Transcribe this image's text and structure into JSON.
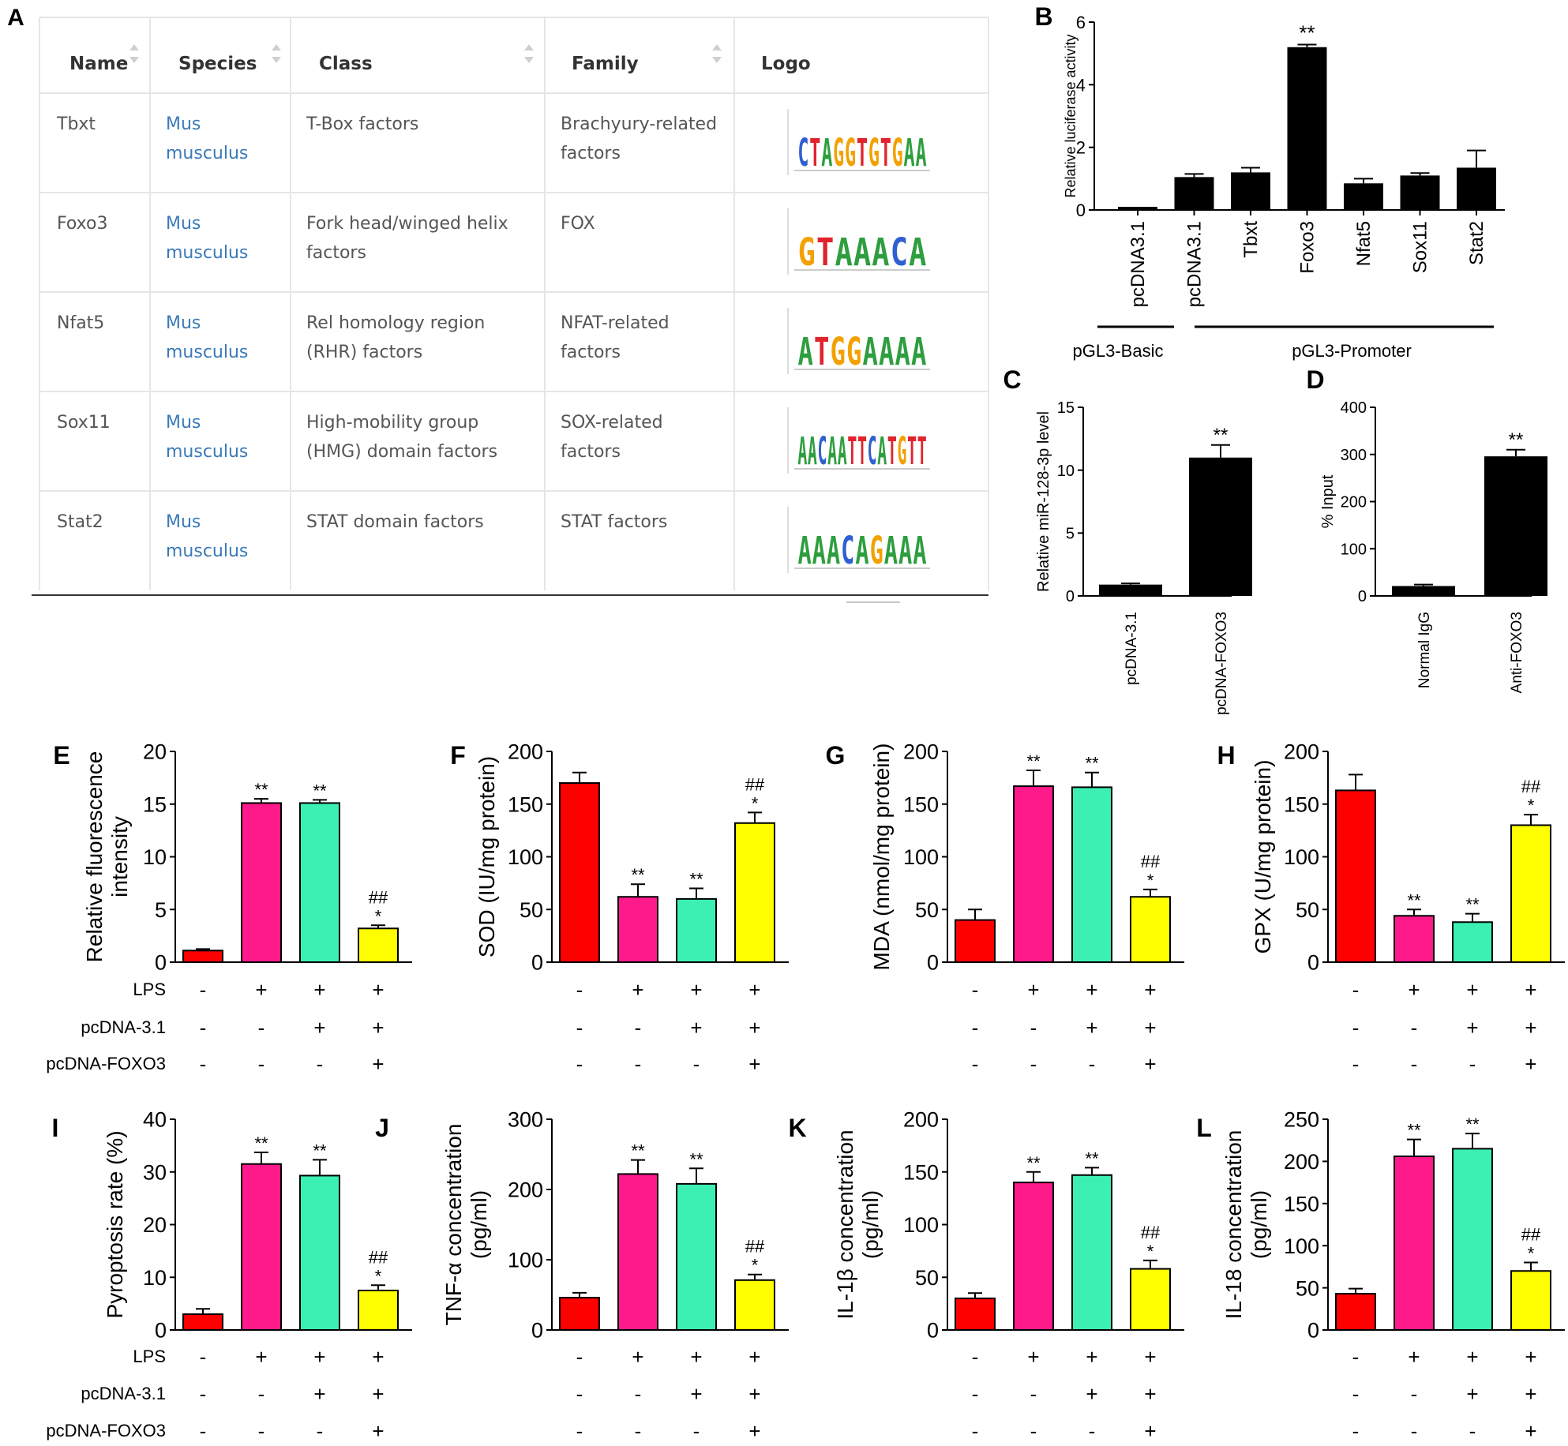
{
  "table": {
    "panel_label": "A",
    "headers": [
      "Name",
      "Species",
      "Class",
      "Family",
      "Logo"
    ],
    "rows": [
      {
        "name": "Tbxt",
        "species": [
          "Mus",
          "musculus"
        ],
        "class": [
          "T-Box factors"
        ],
        "family": [
          "Brachyury-related",
          "factors"
        ],
        "logo": [
          {
            "t": "C",
            "c": "blue"
          },
          {
            "t": "T",
            "c": "red"
          },
          {
            "t": "A",
            "c": "green"
          },
          {
            "t": "G",
            "c": "orange"
          },
          {
            "t": "G",
            "c": "orange"
          },
          {
            "t": "T",
            "c": "red"
          },
          {
            "t": "G",
            "c": "orange"
          },
          {
            "t": "T",
            "c": "red"
          },
          {
            "t": "G",
            "c": "orange"
          },
          {
            "t": "A",
            "c": "green"
          },
          {
            "t": "A",
            "c": "green"
          }
        ]
      },
      {
        "name": "Foxo3",
        "species": [
          "Mus",
          "musculus"
        ],
        "class": [
          "Fork head/winged helix",
          "factors"
        ],
        "family": [
          "FOX"
        ],
        "logo": [
          {
            "t": "G",
            "c": "orange"
          },
          {
            "t": "T",
            "c": "red"
          },
          {
            "t": "A",
            "c": "green"
          },
          {
            "t": "A",
            "c": "green"
          },
          {
            "t": "A",
            "c": "green"
          },
          {
            "t": "C",
            "c": "blue"
          },
          {
            "t": "A",
            "c": "green"
          }
        ]
      },
      {
        "name": "Nfat5",
        "species": [
          "Mus",
          "musculus"
        ],
        "class": [
          "Rel homology region",
          "(RHR) factors"
        ],
        "family": [
          "NFAT-related",
          "factors"
        ],
        "logo": [
          {
            "t": "A",
            "c": "green"
          },
          {
            "t": "T",
            "c": "red"
          },
          {
            "t": "G",
            "c": "orange"
          },
          {
            "t": "G",
            "c": "orange"
          },
          {
            "t": "A",
            "c": "green"
          },
          {
            "t": "A",
            "c": "green"
          },
          {
            "t": "A",
            "c": "green"
          },
          {
            "t": "A",
            "c": "green"
          }
        ]
      },
      {
        "name": "Sox11",
        "species": [
          "Mus",
          "musculus"
        ],
        "class": [
          "High-mobility group",
          "(HMG) domain factors"
        ],
        "family": [
          "SOX-related",
          "factors"
        ],
        "logo": [
          {
            "t": "A",
            "c": "green"
          },
          {
            "t": "A",
            "c": "green"
          },
          {
            "t": "C",
            "c": "blue"
          },
          {
            "t": "A",
            "c": "green"
          },
          {
            "t": "A",
            "c": "green"
          },
          {
            "t": "T",
            "c": "red"
          },
          {
            "t": "T",
            "c": "red"
          },
          {
            "t": "C",
            "c": "blue"
          },
          {
            "t": "A",
            "c": "green"
          },
          {
            "t": "T",
            "c": "red"
          },
          {
            "t": "G",
            "c": "orange"
          },
          {
            "t": "T",
            "c": "red"
          },
          {
            "t": "T",
            "c": "red"
          }
        ]
      },
      {
        "name": "Stat2",
        "species": [
          "Mus",
          "musculus"
        ],
        "class": [
          "STAT domain factors"
        ],
        "family": [
          "STAT factors"
        ],
        "logo": [
          {
            "t": "A",
            "c": "green"
          },
          {
            "t": "A",
            "c": "green"
          },
          {
            "t": "A",
            "c": "green"
          },
          {
            "t": "C",
            "c": "blue"
          },
          {
            "t": "A",
            "c": "green"
          },
          {
            "t": "G",
            "c": "orange"
          },
          {
            "t": "A",
            "c": "green"
          },
          {
            "t": "A",
            "c": "green"
          },
          {
            "t": "A",
            "c": "green"
          }
        ]
      }
    ]
  },
  "colors": {
    "black": "#000000",
    "red": "#ff0000",
    "pink": "#ff1a8c",
    "teal": "#3cf0b4",
    "yellow": "#ffff00",
    "table_text": "#555555",
    "species_link": "#3a7ab8",
    "table_border": "#e6e6e6",
    "logo_A": "#2e9e3f",
    "logo_C": "#2f5fd0",
    "logo_G": "#f2a100",
    "logo_T": "#e0242e"
  },
  "row_labels": {
    "lps": "LPS",
    "vector": "pcDNA-3.1",
    "foxo3": "pcDNA-FOXO3"
  },
  "chart_data": [
    {
      "panel": "B",
      "type": "bar",
      "ylabel": "Relative luciferase activity",
      "ylim": [
        0,
        6
      ],
      "yticks": [
        0,
        2,
        4,
        6
      ],
      "categories": [
        "pcDNA3.1",
        "pcDNA3.1",
        "Tbxt",
        "Foxo3",
        "Nfat5",
        "Sox11",
        "Stat2"
      ],
      "values": [
        0.1,
        1.05,
        1.2,
        5.2,
        0.85,
        1.1,
        1.35
      ],
      "errors": [
        0,
        0.1,
        0.15,
        0.08,
        0.15,
        0.08,
        0.55
      ],
      "annotations": [
        "",
        "",
        "",
        "**",
        "",
        "",
        ""
      ],
      "groups": [
        {
          "label": "pGL3-Basic",
          "from": 0,
          "to": 0
        },
        {
          "label": "pGL3-Promoter",
          "from": 1,
          "to": 6
        }
      ]
    },
    {
      "panel": "C",
      "type": "bar",
      "ylabel": "Relative miR-128-3p level",
      "ylim": [
        0,
        15
      ],
      "yticks": [
        0,
        5,
        10,
        15
      ],
      "categories": [
        "pcDNA-3.1",
        "pcDNA-FOXO3"
      ],
      "values": [
        0.9,
        11.0
      ],
      "errors": [
        0.1,
        1.0
      ],
      "annotations": [
        "",
        "**"
      ]
    },
    {
      "panel": "D",
      "type": "bar",
      "ylabel": "% Input",
      "ylim": [
        0,
        400
      ],
      "yticks": [
        0,
        100,
        200,
        300,
        400
      ],
      "categories": [
        "Normal IgG",
        "Anti-FOXO3"
      ],
      "values": [
        21,
        296
      ],
      "errors": [
        3,
        14
      ],
      "annotations": [
        "",
        "**"
      ]
    },
    {
      "panel": "E",
      "type": "bar",
      "ylabel": "Relative fluorescence intensity",
      "ylim": [
        0,
        20
      ],
      "yticks": [
        0,
        5,
        10,
        15,
        20
      ],
      "values": [
        1.1,
        15.1,
        15.1,
        3.2
      ],
      "errors": [
        0.15,
        0.4,
        0.3,
        0.3
      ],
      "annotations": [
        [],
        [
          "**"
        ],
        [
          "**"
        ],
        [
          "##",
          "*"
        ]
      ],
      "conditions": {
        "lps": [
          "-",
          "+",
          "+",
          "+"
        ],
        "vector": [
          "-",
          "-",
          "+",
          "+"
        ],
        "foxo3": [
          "-",
          "-",
          "-",
          "+"
        ]
      }
    },
    {
      "panel": "F",
      "type": "bar",
      "ylabel": "SOD (IU/mg protein)",
      "ylim": [
        0,
        200
      ],
      "yticks": [
        0,
        50,
        100,
        150,
        200
      ],
      "values": [
        170,
        62,
        60,
        132
      ],
      "errors": [
        10,
        12,
        10,
        10
      ],
      "annotations": [
        [],
        [
          "**"
        ],
        [
          "**"
        ],
        [
          "##",
          "*"
        ]
      ],
      "conditions": {
        "lps": [
          "-",
          "+",
          "+",
          "+"
        ],
        "vector": [
          "-",
          "-",
          "+",
          "+"
        ],
        "foxo3": [
          "-",
          "-",
          "-",
          "+"
        ]
      }
    },
    {
      "panel": "G",
      "type": "bar",
      "ylabel": "MDA (nmol/mg protein)",
      "ylim": [
        0,
        200
      ],
      "yticks": [
        0,
        50,
        100,
        150,
        200
      ],
      "values": [
        40,
        167,
        166,
        62
      ],
      "errors": [
        10,
        15,
        14,
        7
      ],
      "annotations": [
        [],
        [
          "**"
        ],
        [
          "**"
        ],
        [
          "##",
          "*"
        ]
      ],
      "conditions": {
        "lps": [
          "-",
          "+",
          "+",
          "+"
        ],
        "vector": [
          "-",
          "-",
          "+",
          "+"
        ],
        "foxo3": [
          "-",
          "-",
          "-",
          "+"
        ]
      }
    },
    {
      "panel": "H",
      "type": "bar",
      "ylabel": "GPX (U/mg protein)",
      "ylim": [
        0,
        200
      ],
      "yticks": [
        0,
        50,
        100,
        150,
        200
      ],
      "values": [
        163,
        44,
        38,
        130
      ],
      "errors": [
        15,
        6,
        8,
        10
      ],
      "annotations": [
        [],
        [
          "**"
        ],
        [
          "**"
        ],
        [
          "##",
          "*"
        ]
      ],
      "conditions": {
        "lps": [
          "-",
          "+",
          "+",
          "+"
        ],
        "vector": [
          "-",
          "-",
          "+",
          "+"
        ],
        "foxo3": [
          "-",
          "-",
          "-",
          "+"
        ]
      }
    },
    {
      "panel": "I",
      "type": "bar",
      "ylabel": "Pyroptosis rate (%)",
      "ylim": [
        0,
        40
      ],
      "yticks": [
        0,
        10,
        20,
        30,
        40
      ],
      "values": [
        3,
        31.5,
        29.3,
        7.5
      ],
      "errors": [
        1,
        2.2,
        3,
        1
      ],
      "annotations": [
        [],
        [
          "**"
        ],
        [
          "**"
        ],
        [
          "##",
          "*"
        ]
      ],
      "conditions": {
        "lps": [
          "-",
          "+",
          "+",
          "+"
        ],
        "vector": [
          "-",
          "-",
          "+",
          "+"
        ],
        "foxo3": [
          "-",
          "-",
          "-",
          "+"
        ]
      }
    },
    {
      "panel": "J",
      "type": "bar",
      "ylabel": "TNF-α concentration (pg/ml)",
      "ylim": [
        0,
        300
      ],
      "yticks": [
        0,
        100,
        200,
        300
      ],
      "values": [
        46,
        222,
        208,
        71
      ],
      "errors": [
        7,
        20,
        22,
        8
      ],
      "annotations": [
        [],
        [
          "**"
        ],
        [
          "**"
        ],
        [
          "##",
          "*"
        ]
      ],
      "conditions": {
        "lps": [
          "-",
          "+",
          "+",
          "+"
        ],
        "vector": [
          "-",
          "-",
          "+",
          "+"
        ],
        "foxo3": [
          "-",
          "-",
          "-",
          "+"
        ]
      }
    },
    {
      "panel": "K",
      "type": "bar",
      "ylabel": "IL-1β concentration (pg/ml)",
      "ylim": [
        0,
        200
      ],
      "yticks": [
        0,
        50,
        100,
        150,
        200
      ],
      "values": [
        30,
        140,
        147,
        58
      ],
      "errors": [
        5,
        10,
        7,
        8
      ],
      "annotations": [
        [],
        [
          "**"
        ],
        [
          "**"
        ],
        [
          "##",
          "*"
        ]
      ],
      "conditions": {
        "lps": [
          "-",
          "+",
          "+",
          "+"
        ],
        "vector": [
          "-",
          "-",
          "+",
          "+"
        ],
        "foxo3": [
          "-",
          "-",
          "-",
          "+"
        ]
      }
    },
    {
      "panel": "L",
      "type": "bar",
      "ylabel": "IL-18 concentration (pg/ml)",
      "ylim": [
        0,
        250
      ],
      "yticks": [
        0,
        50,
        100,
        150,
        200,
        250
      ],
      "values": [
        43,
        206,
        215,
        70
      ],
      "errors": [
        6,
        20,
        18,
        10
      ],
      "annotations": [
        [],
        [
          "**"
        ],
        [
          "**"
        ],
        [
          "##",
          "*"
        ]
      ],
      "conditions": {
        "lps": [
          "-",
          "+",
          "+",
          "+"
        ],
        "vector": [
          "-",
          "-",
          "+",
          "+"
        ],
        "foxo3": [
          "-",
          "-",
          "-",
          "+"
        ]
      }
    }
  ]
}
